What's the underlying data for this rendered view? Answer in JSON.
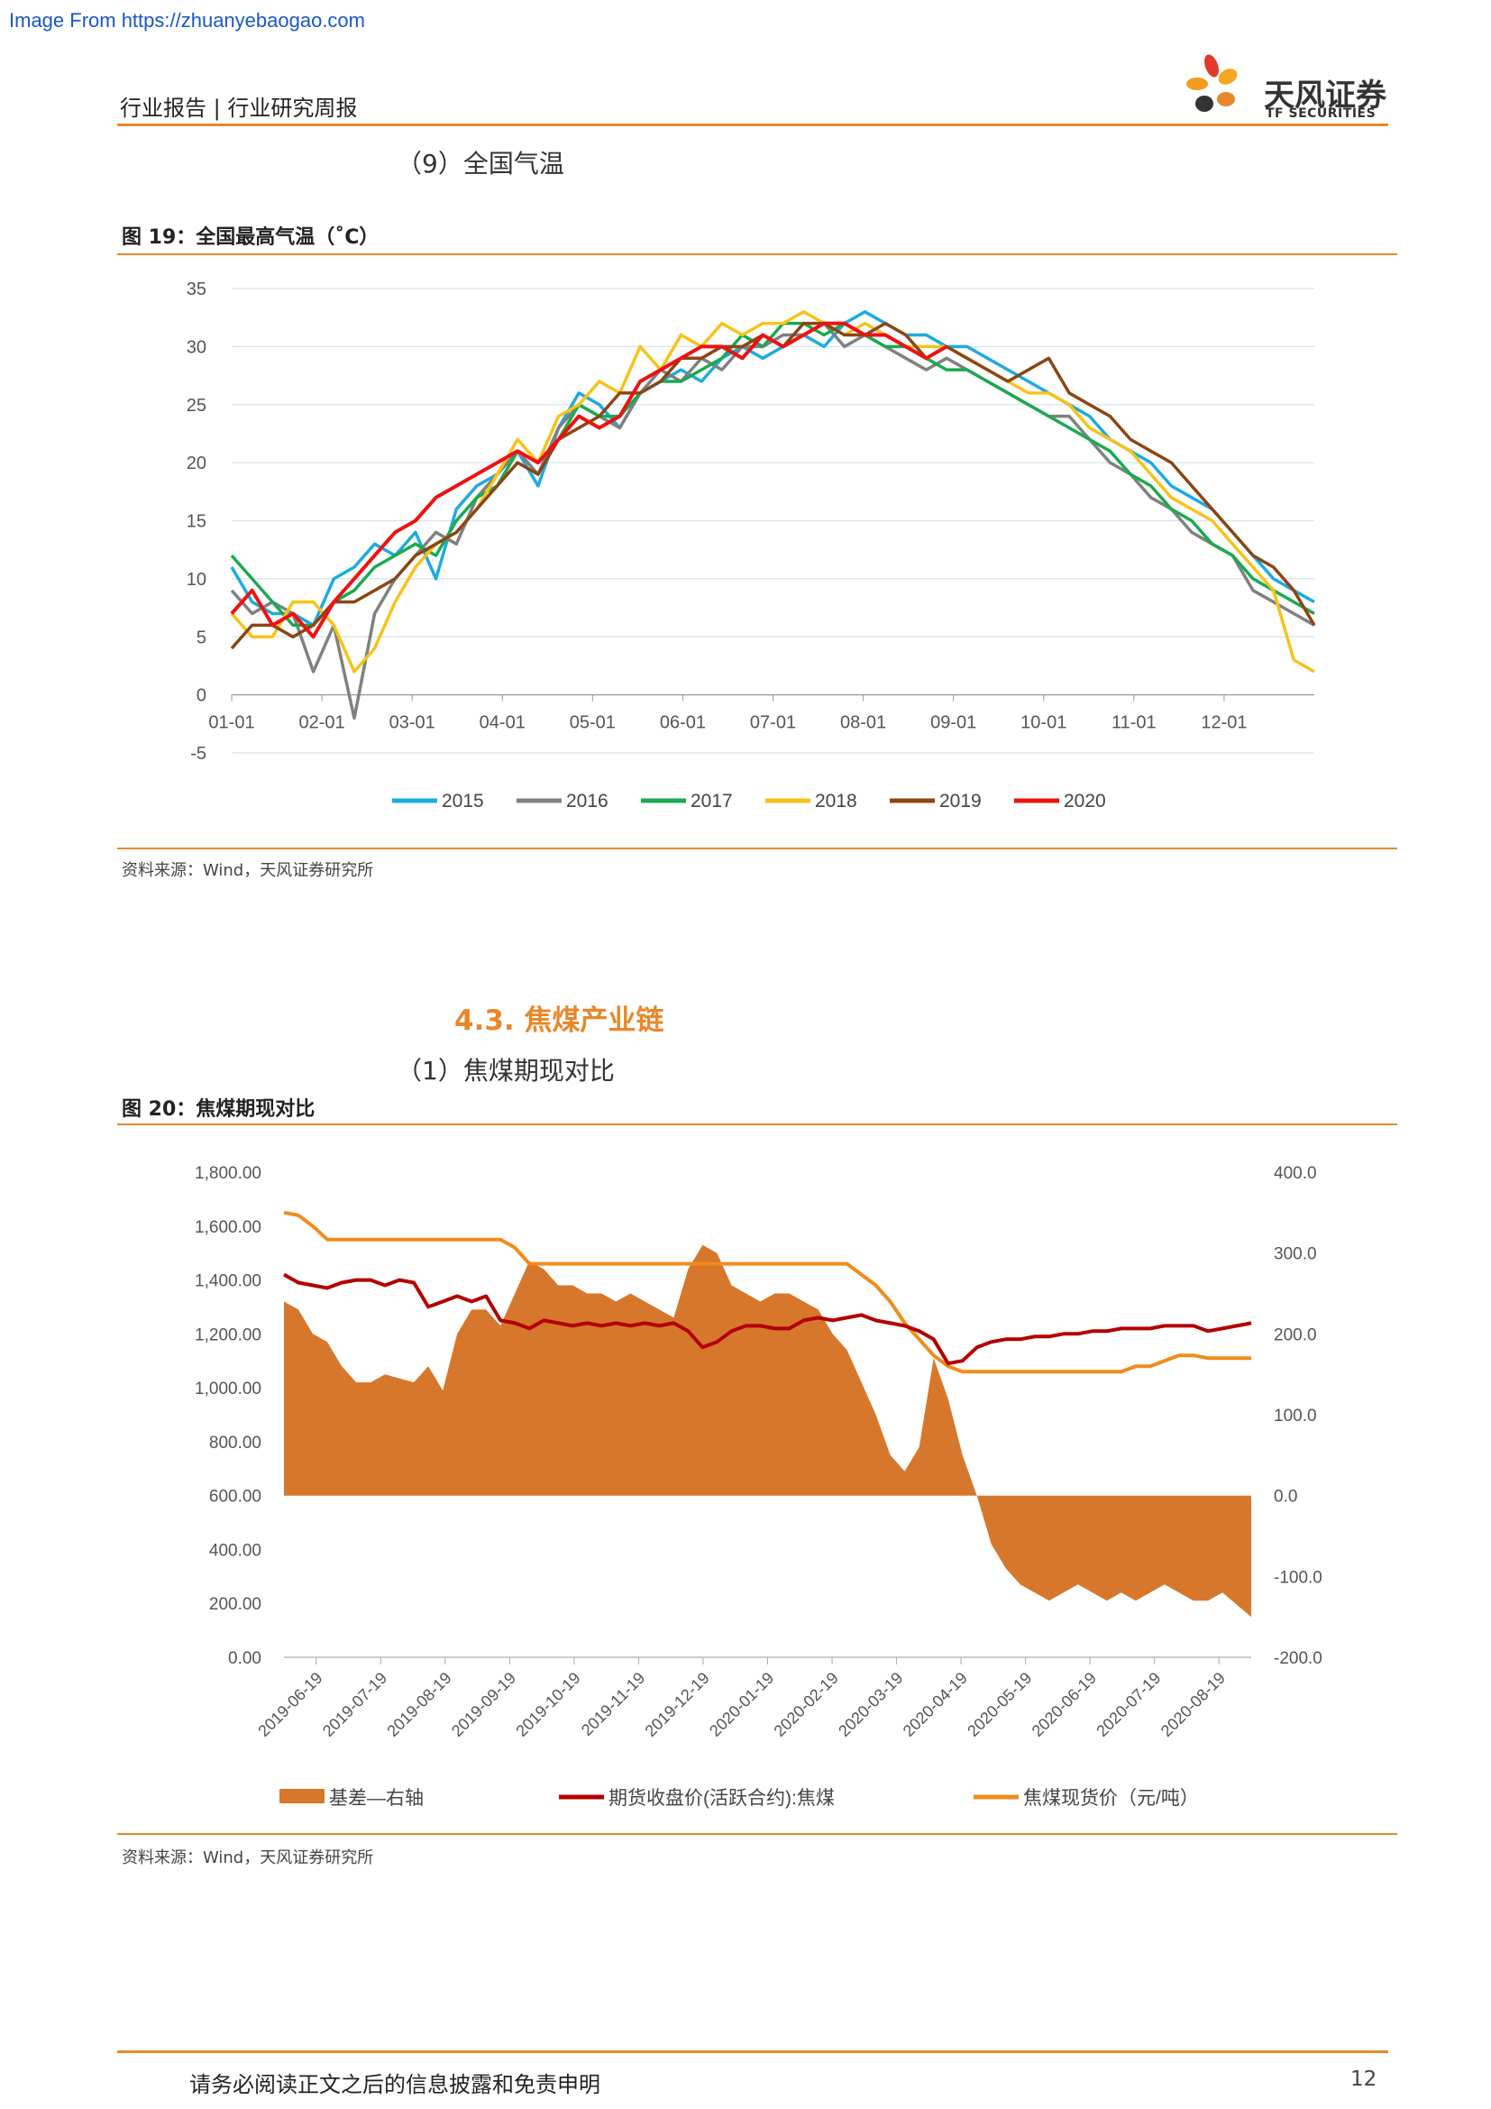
{
  "watermark": "Image From https://zhuanyebaogao.com",
  "header": {
    "title": "行业报告 | 行业研究周报",
    "logo_name": "天风证券",
    "logo_en": "TF SECURITIES"
  },
  "sub9": "（9）全国气温",
  "fig19": {
    "title": "图 19：全国最高气温（˚C）",
    "source": "资料来源：Wind，天风证券研究所"
  },
  "section": "4.3. 焦煤产业链",
  "sub1": "（1）焦煤期现对比",
  "fig20": {
    "title": "图 20：焦煤期现对比",
    "source": "资料来源：Wind，天风证券研究所"
  },
  "footer": {
    "text": "请务必阅读正文之后的信息披露和免责申明",
    "page": "12"
  },
  "colors": {
    "accent": "#e8872a",
    "s2015": "#1eaae0",
    "s2016": "#808080",
    "s2017": "#1aaa50",
    "s2018": "#f7c21a",
    "s2019": "#8b4513",
    "s2020": "#ee1111",
    "basis": "#d7772b",
    "futures": "#b30000",
    "spot": "#f08c1c"
  },
  "chart_data": [
    {
      "type": "line",
      "x_tick_labels": [
        "01-01",
        "02-01",
        "03-01",
        "04-01",
        "05-01",
        "06-01",
        "07-01",
        "08-01",
        "09-01",
        "10-01",
        "11-01",
        "12-01"
      ],
      "y_ticks": [
        35,
        30,
        25,
        20,
        15,
        10,
        5,
        0,
        -5
      ],
      "ylim": [
        -5,
        35
      ],
      "grid": true,
      "legend_position": "bottom",
      "series": [
        {
          "name": "2015",
          "color_key": "s2015",
          "values": [
            11,
            8,
            7,
            7,
            6,
            10,
            11,
            13,
            12,
            14,
            10,
            16,
            18,
            19,
            21,
            18,
            23,
            26,
            25,
            23,
            26,
            27,
            28,
            27,
            29,
            30,
            29,
            30,
            31,
            30,
            32,
            33,
            32,
            31,
            31,
            30,
            30,
            29,
            28,
            27,
            26,
            25,
            24,
            22,
            21,
            20,
            18,
            17,
            16,
            14,
            12,
            10,
            9,
            8
          ]
        },
        {
          "name": "2016",
          "color_key": "s2016",
          "values": [
            9,
            7,
            8,
            7,
            2,
            6,
            -2,
            7,
            10,
            12,
            14,
            13,
            17,
            19,
            21,
            19,
            23,
            25,
            24,
            23,
            26,
            28,
            27,
            29,
            28,
            30,
            30,
            31,
            31,
            32,
            30,
            31,
            30,
            29,
            28,
            29,
            28,
            27,
            26,
            25,
            24,
            24,
            22,
            20,
            19,
            17,
            16,
            14,
            13,
            12,
            9,
            8,
            7,
            6
          ]
        },
        {
          "name": "2017",
          "color_key": "s2017",
          "values": [
            12,
            10,
            8,
            6,
            6,
            8,
            9,
            11,
            12,
            13,
            12,
            15,
            17,
            18,
            21,
            20,
            22,
            25,
            24,
            24,
            26,
            27,
            27,
            28,
            29,
            31,
            30,
            32,
            32,
            31,
            32,
            31,
            30,
            30,
            29,
            28,
            28,
            27,
            26,
            25,
            24,
            23,
            22,
            21,
            19,
            18,
            16,
            15,
            13,
            12,
            10,
            9,
            8,
            7
          ]
        },
        {
          "name": "2018",
          "color_key": "s2018",
          "values": [
            7,
            5,
            5,
            8,
            8,
            6,
            2,
            4,
            8,
            11,
            13,
            14,
            16,
            19,
            22,
            20,
            24,
            25,
            27,
            26,
            30,
            28,
            31,
            30,
            32,
            31,
            32,
            32,
            33,
            32,
            31,
            32,
            31,
            30,
            30,
            30,
            29,
            28,
            27,
            26,
            26,
            25,
            23,
            22,
            21,
            19,
            17,
            16,
            15,
            13,
            11,
            9,
            3,
            2
          ]
        },
        {
          "name": "2019",
          "color_key": "s2019",
          "values": [
            4,
            6,
            6,
            5,
            6,
            8,
            8,
            9,
            10,
            12,
            13,
            14,
            16,
            18,
            20,
            19,
            22,
            23,
            24,
            26,
            26,
            27,
            29,
            29,
            30,
            30,
            31,
            30,
            32,
            32,
            31,
            31,
            32,
            31,
            29,
            30,
            29,
            28,
            27,
            28,
            29,
            26,
            25,
            24,
            22,
            21,
            20,
            18,
            16,
            14,
            12,
            11,
            9,
            6
          ]
        },
        {
          "name": "2020",
          "color_key": "s2020",
          "values": [
            7,
            9,
            6,
            7,
            5,
            8,
            10,
            12,
            14,
            15,
            17,
            18,
            19,
            20,
            21,
            20,
            22,
            24,
            23,
            24,
            27,
            28,
            29,
            30,
            30,
            29,
            31,
            30,
            31,
            32,
            32,
            31,
            31,
            30,
            29,
            30,
            null,
            null,
            null,
            null,
            null,
            null,
            null,
            null,
            null,
            null,
            null,
            null,
            null,
            null,
            null,
            null,
            null,
            null
          ]
        }
      ]
    },
    {
      "type": "area",
      "x_tick_labels": [
        "2019-06-19",
        "2019-07-19",
        "2019-08-19",
        "2019-09-19",
        "2019-10-19",
        "2019-11-19",
        "2019-12-19",
        "2020-01-19",
        "2020-02-19",
        "2020-03-19",
        "2020-04-19",
        "2020-05-19",
        "2020-06-19",
        "2020-07-19",
        "2020-08-19"
      ],
      "left_ticks": [
        "1,800.00",
        "1,600.00",
        "1,400.00",
        "1,200.00",
        "1,000.00",
        "800.00",
        "600.00",
        "400.00",
        "200.00",
        "0.00"
      ],
      "right_ticks": [
        "400.0",
        "300.0",
        "200.0",
        "100.0",
        "0.0",
        "-100.0",
        "-200.0"
      ],
      "left_ylim": [
        0,
        1800
      ],
      "right_ylim": [
        -200,
        400
      ],
      "legend_position": "bottom",
      "series": [
        {
          "name": "基差—右轴",
          "axis": "right",
          "kind": "area",
          "color_key": "basis",
          "values": [
            240,
            230,
            200,
            190,
            160,
            140,
            140,
            150,
            145,
            140,
            160,
            130,
            200,
            230,
            230,
            210,
            250,
            290,
            280,
            260,
            260,
            250,
            250,
            240,
            250,
            240,
            230,
            220,
            280,
            310,
            300,
            260,
            250,
            240,
            250,
            250,
            240,
            230,
            200,
            180,
            140,
            100,
            50,
            30,
            60,
            170,
            120,
            50,
            0,
            -60,
            -90,
            -110,
            -120,
            -130,
            -120,
            -110,
            -120,
            -130,
            -120,
            -130,
            -120,
            -110,
            -120,
            -130,
            -130,
            -120,
            -135,
            -150
          ]
        },
        {
          "name": "期货收盘价(活跃合约):焦煤",
          "axis": "left",
          "kind": "line",
          "color_key": "futures",
          "values": [
            1420,
            1390,
            1380,
            1370,
            1390,
            1400,
            1400,
            1380,
            1400,
            1390,
            1300,
            1320,
            1340,
            1320,
            1340,
            1250,
            1240,
            1220,
            1250,
            1240,
            1230,
            1240,
            1230,
            1240,
            1230,
            1240,
            1230,
            1240,
            1210,
            1150,
            1170,
            1210,
            1230,
            1230,
            1220,
            1220,
            1250,
            1260,
            1250,
            1260,
            1270,
            1250,
            1240,
            1230,
            1210,
            1180,
            1090,
            1100,
            1150,
            1170,
            1180,
            1180,
            1190,
            1190,
            1200,
            1200,
            1210,
            1210,
            1220,
            1220,
            1220,
            1230,
            1230,
            1230,
            1210,
            1220,
            1230,
            1240
          ]
        },
        {
          "name": "焦煤现货价（元/吨）",
          "axis": "left",
          "kind": "line",
          "color_key": "spot",
          "values": [
            1650,
            1640,
            1600,
            1550,
            1550,
            1550,
            1550,
            1550,
            1550,
            1550,
            1550,
            1550,
            1550,
            1550,
            1550,
            1550,
            1520,
            1460,
            1460,
            1460,
            1460,
            1460,
            1460,
            1460,
            1460,
            1460,
            1460,
            1460,
            1460,
            1460,
            1460,
            1460,
            1460,
            1460,
            1460,
            1460,
            1460,
            1460,
            1460,
            1460,
            1420,
            1380,
            1320,
            1240,
            1180,
            1120,
            1080,
            1060,
            1060,
            1060,
            1060,
            1060,
            1060,
            1060,
            1060,
            1060,
            1060,
            1060,
            1060,
            1080,
            1080,
            1100,
            1120,
            1120,
            1110,
            1110,
            1110,
            1110
          ]
        }
      ]
    }
  ]
}
